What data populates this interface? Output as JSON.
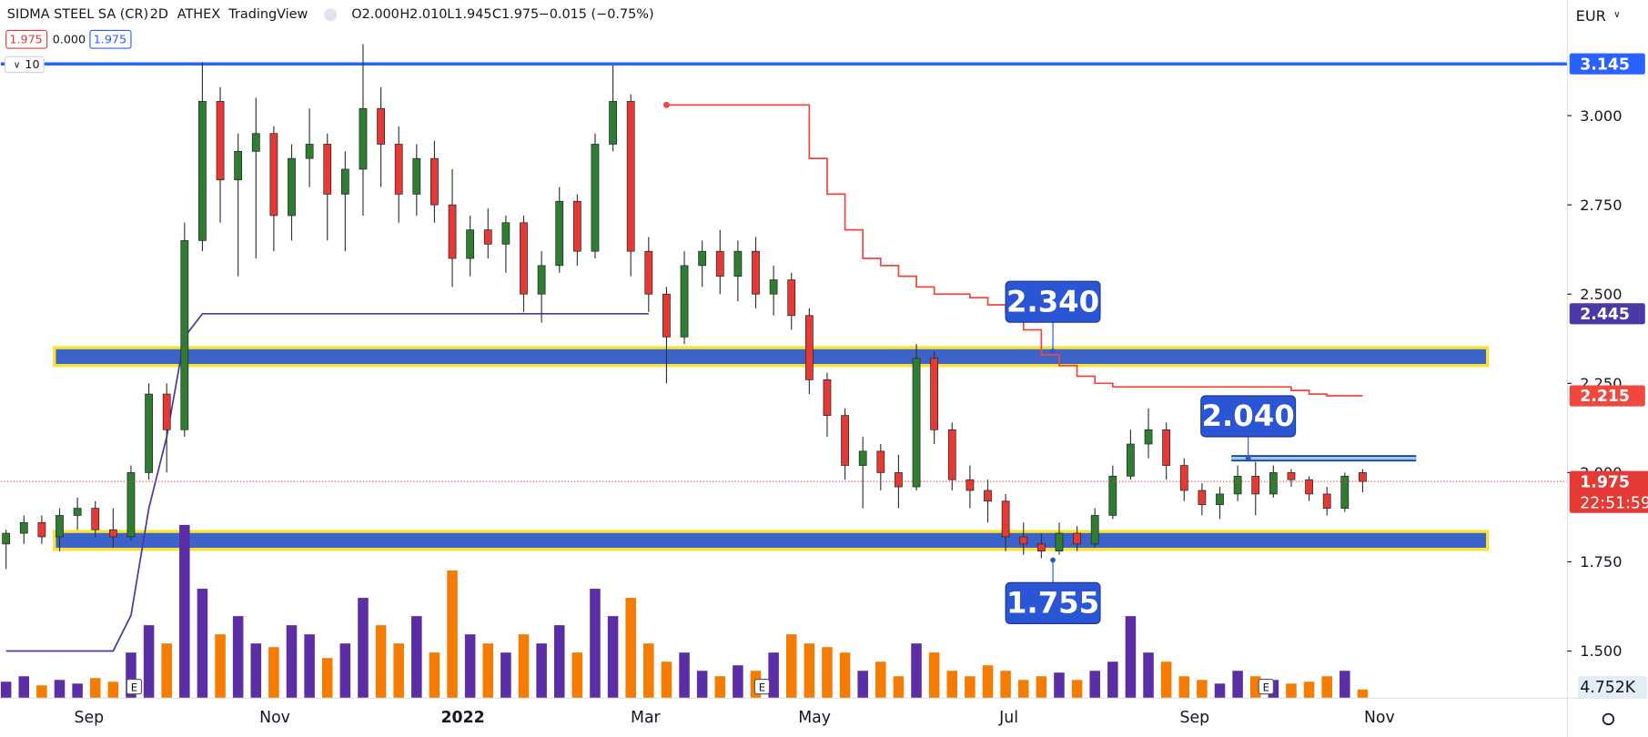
{
  "chart_data": {
    "type": "candlestick",
    "title": "SIDMA STEEL SA (CR)",
    "interval": "2D",
    "exchange": "ATHEX",
    "source": "TradingView",
    "legend": {
      "open": "O2.000",
      "high": "H2.010",
      "low": "L1.945",
      "close": "C1.975",
      "change": "−0.015 (−0.75%)"
    },
    "quote_boxes": [
      "1.975",
      "0.000",
      "1.975"
    ],
    "indicator_length": "10",
    "currency": "EUR",
    "up_color": "#2e7d32",
    "down_color": "#e53935",
    "ylim": [
      1.368,
      3.324
    ],
    "yticks": [
      {
        "value": 3.0,
        "label": "3.000"
      },
      {
        "value": 2.75,
        "label": "2.750"
      },
      {
        "value": 2.5,
        "label": "2.500"
      },
      {
        "value": 2.25,
        "label": "2.250"
      },
      {
        "value": 2.0,
        "label": "2.000"
      },
      {
        "value": 1.75,
        "label": "1.750"
      },
      {
        "value": 1.5,
        "label": "1.500"
      }
    ],
    "xtick_labels": [
      "Sep",
      "Nov",
      "2022",
      "Mar",
      "May",
      "Jul",
      "Sep",
      "Nov"
    ],
    "earnings": [
      "E",
      "E",
      "E"
    ],
    "open": [
      1.8,
      1.83,
      1.86,
      1.82,
      1.88,
      1.9,
      1.84,
      1.82,
      2.0,
      2.22,
      2.12,
      2.65,
      3.04,
      2.82,
      2.9,
      2.95,
      2.72,
      2.88,
      2.92,
      2.78,
      2.85,
      3.02,
      2.92,
      2.78,
      2.88,
      2.75,
      2.6,
      2.68,
      2.64,
      2.7,
      2.5,
      2.58,
      2.76,
      2.62,
      2.92,
      3.04,
      2.62,
      2.5,
      2.38,
      2.58,
      2.62,
      2.55,
      2.62,
      2.5,
      2.54,
      2.44,
      2.26,
      2.16,
      2.02,
      2.06,
      2.0,
      1.96,
      2.32,
      2.12,
      1.98,
      1.95,
      1.92,
      1.82,
      1.8,
      1.78,
      1.83,
      1.8,
      1.88,
      1.99,
      2.08,
      2.12,
      2.02,
      1.95,
      1.91,
      1.94,
      1.99,
      1.94,
      2.0,
      1.98,
      1.94,
      1.9,
      2.0
    ],
    "high": [
      1.84,
      1.88,
      1.88,
      1.9,
      1.93,
      1.92,
      1.9,
      2.02,
      2.25,
      2.25,
      2.7,
      3.15,
      3.08,
      2.95,
      3.05,
      2.97,
      2.92,
      3.02,
      2.95,
      2.9,
      3.2,
      3.08,
      2.97,
      2.92,
      2.93,
      2.85,
      2.72,
      2.74,
      2.72,
      2.72,
      2.62,
      2.8,
      2.78,
      2.95,
      3.14,
      3.06,
      2.66,
      2.52,
      2.62,
      2.65,
      2.68,
      2.65,
      2.66,
      2.58,
      2.56,
      2.46,
      2.28,
      2.18,
      2.1,
      2.08,
      2.05,
      2.36,
      2.34,
      2.14,
      2.02,
      1.98,
      1.94,
      1.86,
      1.83,
      1.86,
      1.85,
      1.9,
      2.02,
      2.12,
      2.18,
      2.14,
      2.04,
      1.97,
      1.96,
      2.02,
      2.03,
      2.02,
      2.01,
      1.99,
      1.96,
      2.0,
      2.01
    ],
    "low": [
      1.73,
      1.8,
      1.8,
      1.78,
      1.84,
      1.82,
      1.79,
      1.81,
      1.98,
      2.0,
      2.1,
      2.62,
      2.7,
      2.55,
      2.6,
      2.62,
      2.65,
      2.8,
      2.65,
      2.62,
      2.72,
      2.8,
      2.7,
      2.72,
      2.7,
      2.52,
      2.55,
      2.6,
      2.56,
      2.45,
      2.42,
      2.56,
      2.58,
      2.6,
      2.9,
      2.55,
      2.45,
      2.25,
      2.36,
      2.52,
      2.5,
      2.48,
      2.46,
      2.44,
      2.4,
      2.22,
      2.1,
      1.98,
      1.9,
      1.95,
      1.9,
      1.95,
      2.08,
      1.95,
      1.9,
      1.86,
      1.78,
      1.77,
      1.76,
      1.77,
      1.78,
      1.79,
      1.87,
      1.98,
      2.04,
      1.98,
      1.92,
      1.88,
      1.87,
      1.92,
      1.88,
      1.93,
      1.96,
      1.92,
      1.88,
      1.89,
      1.945
    ],
    "close": [
      1.83,
      1.86,
      1.82,
      1.88,
      1.9,
      1.84,
      1.82,
      2.0,
      2.22,
      2.12,
      2.65,
      3.04,
      2.82,
      2.9,
      2.95,
      2.72,
      2.88,
      2.92,
      2.78,
      2.85,
      3.02,
      2.92,
      2.78,
      2.88,
      2.75,
      2.6,
      2.68,
      2.64,
      2.7,
      2.5,
      2.58,
      2.76,
      2.62,
      2.92,
      3.04,
      2.62,
      2.5,
      2.38,
      2.58,
      2.62,
      2.55,
      2.62,
      2.5,
      2.54,
      2.44,
      2.26,
      2.16,
      2.02,
      2.06,
      2.0,
      1.96,
      2.32,
      2.12,
      1.98,
      1.95,
      1.92,
      1.82,
      1.8,
      1.78,
      1.83,
      1.8,
      1.88,
      1.99,
      2.08,
      2.12,
      2.02,
      1.95,
      1.91,
      1.94,
      1.99,
      1.94,
      2.0,
      1.98,
      1.94,
      1.9,
      1.99,
      1.975
    ],
    "volume": {
      "up_color": "#5b2ea6",
      "down_color": "#f57c00",
      "values": [
        9000,
        12000,
        7000,
        10000,
        8000,
        11000,
        9000,
        25000,
        40000,
        30000,
        95000,
        60000,
        35000,
        45000,
        30000,
        28000,
        40000,
        35000,
        22000,
        30000,
        55000,
        40000,
        30000,
        45000,
        25000,
        70000,
        35000,
        30000,
        25000,
        35000,
        30000,
        40000,
        25000,
        60000,
        45000,
        55000,
        30000,
        20000,
        25000,
        15000,
        12000,
        18000,
        15000,
        25000,
        35000,
        30000,
        28000,
        25000,
        15000,
        20000,
        12000,
        30000,
        25000,
        15000,
        12000,
        18000,
        15000,
        10000,
        12000,
        14000,
        10000,
        15000,
        20000,
        45000,
        25000,
        20000,
        12000,
        10000,
        8000,
        15000,
        12000,
        10000,
        8000,
        9000,
        12000,
        15000,
        4752
      ],
      "value_labels": [
        null,
        null,
        null,
        null,
        null,
        null,
        null,
        null,
        null,
        null,
        null,
        null,
        null,
        null,
        null,
        null,
        null,
        null,
        null,
        null,
        null,
        null,
        null,
        null,
        null,
        null,
        null,
        null,
        null,
        null,
        null,
        null,
        null,
        null,
        null,
        null,
        null,
        null,
        null,
        null,
        null,
        null,
        null,
        null,
        null,
        null,
        null,
        null,
        null,
        null,
        null,
        null,
        null,
        null,
        null,
        null,
        null,
        null,
        null,
        null,
        null,
        null,
        null,
        null,
        null,
        null,
        null,
        null,
        null,
        null,
        null,
        null,
        null,
        null,
        null,
        null,
        "4.752K"
      ]
    },
    "trailing_support": {
      "color": "#4a3aa8",
      "label": "2.445",
      "values": [
        1.5,
        1.5,
        1.5,
        1.5,
        1.5,
        1.5,
        1.5,
        1.6,
        1.9,
        2.1,
        2.38,
        2.445,
        2.445,
        2.445,
        2.445,
        2.445,
        2.445,
        2.445,
        2.445,
        2.445,
        2.445,
        2.445,
        2.445,
        2.445,
        2.445,
        2.445,
        2.445,
        2.445,
        2.445,
        2.445,
        2.445,
        2.445,
        2.445,
        2.445,
        2.445,
        2.445,
        2.445,
        null,
        null,
        null,
        null,
        null,
        null,
        null,
        null,
        null,
        null,
        null,
        null,
        null,
        null,
        null,
        null,
        null,
        null,
        null,
        null,
        null,
        null,
        null,
        null,
        null,
        null,
        null,
        null,
        null,
        null,
        null,
        null,
        null,
        null,
        null,
        null,
        null,
        null,
        null,
        null
      ]
    },
    "trailing_stop": {
      "color": "#f0473f",
      "label": "2.215",
      "values": [
        null,
        null,
        null,
        null,
        null,
        null,
        null,
        null,
        null,
        null,
        null,
        null,
        null,
        null,
        null,
        null,
        null,
        null,
        null,
        null,
        null,
        null,
        null,
        null,
        null,
        null,
        null,
        null,
        null,
        null,
        null,
        null,
        null,
        null,
        null,
        null,
        null,
        3.03,
        3.03,
        3.03,
        3.03,
        3.03,
        3.03,
        3.03,
        3.03,
        2.88,
        2.78,
        2.68,
        2.6,
        2.58,
        2.55,
        2.52,
        2.5,
        2.5,
        2.49,
        2.47,
        2.45,
        2.4,
        2.33,
        2.3,
        2.27,
        2.25,
        2.24,
        2.24,
        2.24,
        2.24,
        2.24,
        2.24,
        2.24,
        2.24,
        2.24,
        2.24,
        2.23,
        2.22,
        2.215,
        2.215,
        2.215
      ]
    },
    "lines": [
      {
        "value": 3.145,
        "label": "3.145",
        "color": "#2962ff"
      }
    ],
    "zones": [
      {
        "low": 2.3,
        "high": 2.35
      },
      {
        "low": 1.785,
        "high": 1.835
      }
    ],
    "annotations": [
      {
        "value": 2.34,
        "label": "2.340"
      },
      {
        "value": 2.04,
        "label": "2.040"
      },
      {
        "value": 1.755,
        "label": "1.755"
      }
    ],
    "last_price": {
      "value": 1.975,
      "label": "1.975",
      "countdown": "22:51:59"
    }
  }
}
